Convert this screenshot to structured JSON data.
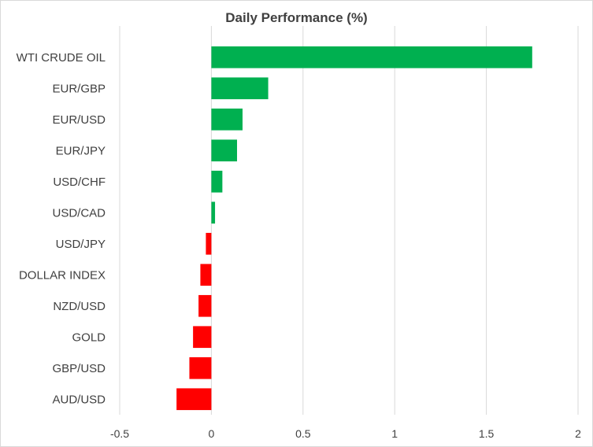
{
  "chart_data": {
    "type": "bar",
    "orientation": "horizontal",
    "title": "Daily Performance (%)",
    "xlabel": "",
    "ylabel": "",
    "categories": [
      "WTI CRUDE OIL",
      "EUR/GBP",
      "EUR/USD",
      "EUR/JPY",
      "USD/CHF",
      "USD/CAD",
      "USD/JPY",
      "DOLLAR INDEX",
      "NZD/USD",
      "GOLD",
      "GBP/USD",
      "AUD/USD"
    ],
    "values": [
      1.75,
      0.31,
      0.17,
      0.14,
      0.06,
      0.02,
      -0.03,
      -0.06,
      -0.07,
      -0.1,
      -0.12,
      -0.19
    ],
    "xlim": [
      -0.5,
      2
    ],
    "xticks": [
      -0.5,
      0,
      0.5,
      1,
      1.5,
      2
    ],
    "xtick_labels": [
      "-0.5",
      "0",
      "0.5",
      "1",
      "1.5",
      "2"
    ],
    "grid": "vertical",
    "legend": "none",
    "colors": {
      "positive": "#00b050",
      "negative": "#ff0000",
      "grid": "#d9d9d9",
      "text": "#404040"
    }
  }
}
